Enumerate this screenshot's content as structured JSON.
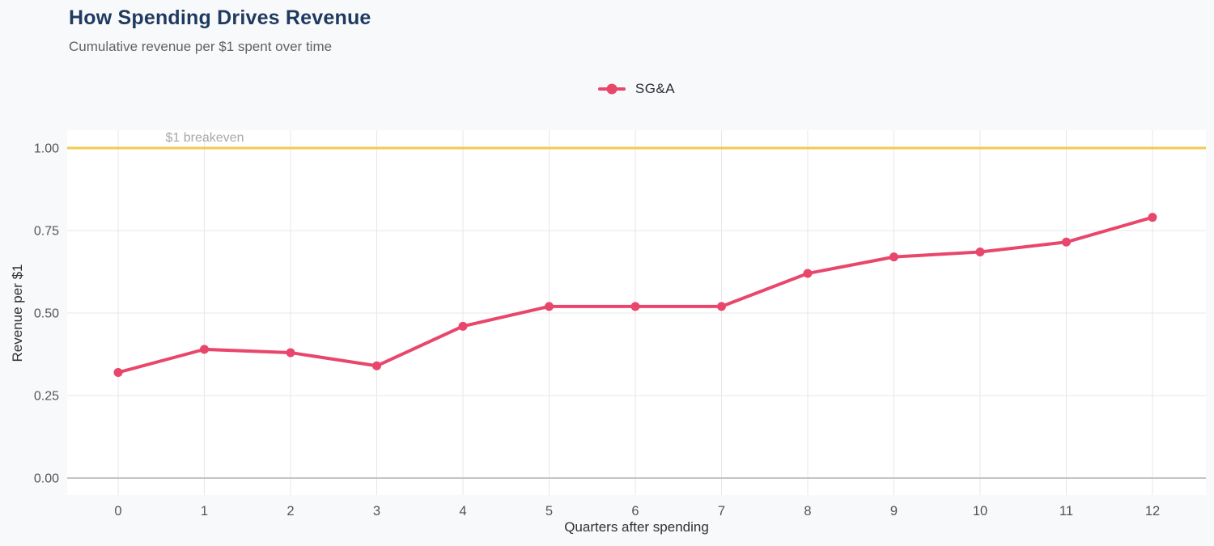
{
  "header": {
    "title": "How Spending Drives Revenue",
    "subtitle": "Cumulative revenue per $1 spent over time"
  },
  "legend": {
    "items": [
      {
        "label": "SG&A",
        "color": "#E8476B"
      }
    ]
  },
  "colors": {
    "page_bg": "#F8F9FA",
    "panel_bg": "#FFFFFF",
    "grid": "#E7E7E7",
    "zero_line": "#C4C4C4",
    "series": "#E8476B",
    "breakeven": "#F2C94F",
    "tick_label": "#555555",
    "axis_title": "#2F2F2F",
    "annotation": "#A8A8A8",
    "title": "#1E3A5F",
    "subtitle": "#5F6368"
  },
  "chart_data": {
    "type": "line",
    "title": "How Spending Drives Revenue",
    "subtitle": "Cumulative revenue per $1 spent over time",
    "xlabel": "Quarters after spending",
    "ylabel": "Revenue per $1",
    "x": [
      0,
      1,
      2,
      3,
      4,
      5,
      6,
      7,
      8,
      9,
      10,
      11,
      12
    ],
    "series": [
      {
        "name": "SG&A",
        "color": "#E8476B",
        "values": [
          0.32,
          0.39,
          0.38,
          0.34,
          0.46,
          0.52,
          0.52,
          0.52,
          0.62,
          0.67,
          0.685,
          0.715,
          0.79
        ]
      }
    ],
    "xticks": [
      0,
      1,
      2,
      3,
      4,
      5,
      6,
      7,
      8,
      9,
      10,
      11,
      12
    ],
    "yticks": [
      0,
      0.25,
      0.5,
      0.75,
      1.0
    ],
    "ytick_labels": [
      "0.00",
      "0.25",
      "0.50",
      "0.75",
      "1.00"
    ],
    "xlim": [
      -0.6,
      12.6
    ],
    "ylim": [
      -0.05,
      1.05
    ],
    "grid": true,
    "legend_position": "top-center",
    "breakeven_line": {
      "y": 1.0,
      "label": "$1 breakeven",
      "color": "#F2C94F"
    }
  }
}
